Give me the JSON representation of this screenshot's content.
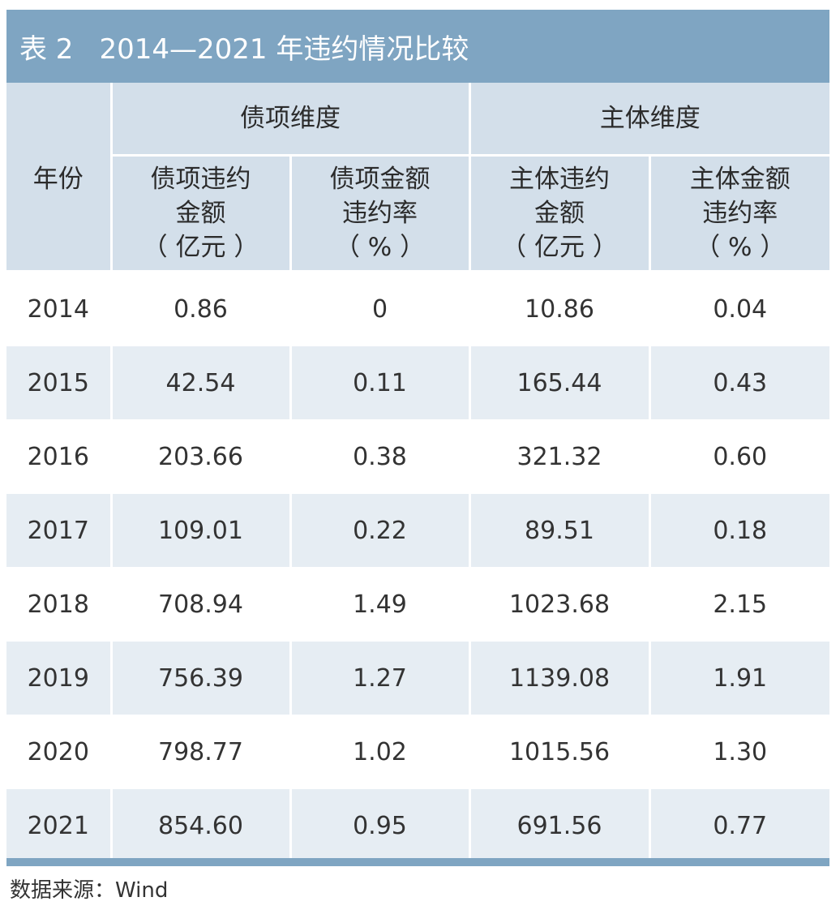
{
  "title": {
    "table_no": "表 2",
    "text": "2014—2021 年违约情况比较"
  },
  "header": {
    "year": "年份",
    "group_bond": "债项维度",
    "group_entity": "主体维度",
    "col1": [
      "债项违约",
      "金额",
      "（ 亿元 ）"
    ],
    "col2": [
      "债项金额",
      "违约率",
      "（ % ）"
    ],
    "col3": [
      "主体违约",
      "金额",
      "（ 亿元 ）"
    ],
    "col4": [
      "主体金额",
      "违约率",
      "（ % ）"
    ]
  },
  "rows": [
    {
      "year": "2014",
      "bond_amount": "0.86",
      "bond_rate": "0",
      "entity_amount": "10.86",
      "entity_rate": "0.04"
    },
    {
      "year": "2015",
      "bond_amount": "42.54",
      "bond_rate": "0.11",
      "entity_amount": "165.44",
      "entity_rate": "0.43"
    },
    {
      "year": "2016",
      "bond_amount": "203.66",
      "bond_rate": "0.38",
      "entity_amount": "321.32",
      "entity_rate": "0.60"
    },
    {
      "year": "2017",
      "bond_amount": "109.01",
      "bond_rate": "0.22",
      "entity_amount": "89.51",
      "entity_rate": "0.18"
    },
    {
      "year": "2018",
      "bond_amount": "708.94",
      "bond_rate": "1.49",
      "entity_amount": "1023.68",
      "entity_rate": "2.15"
    },
    {
      "year": "2019",
      "bond_amount": "756.39",
      "bond_rate": "1.27",
      "entity_amount": "1139.08",
      "entity_rate": "1.91"
    },
    {
      "year": "2020",
      "bond_amount": "798.77",
      "bond_rate": "1.02",
      "entity_amount": "1015.56",
      "entity_rate": "1.30"
    },
    {
      "year": "2021",
      "bond_amount": "854.60",
      "bond_rate": "0.95",
      "entity_amount": "691.56",
      "entity_rate": "0.77"
    }
  ],
  "source": "数据来源：Wind",
  "colors": {
    "title_bar": "#7fa5c2",
    "header_bg": "#d3dfea",
    "row_shade": "#e6edf3"
  }
}
